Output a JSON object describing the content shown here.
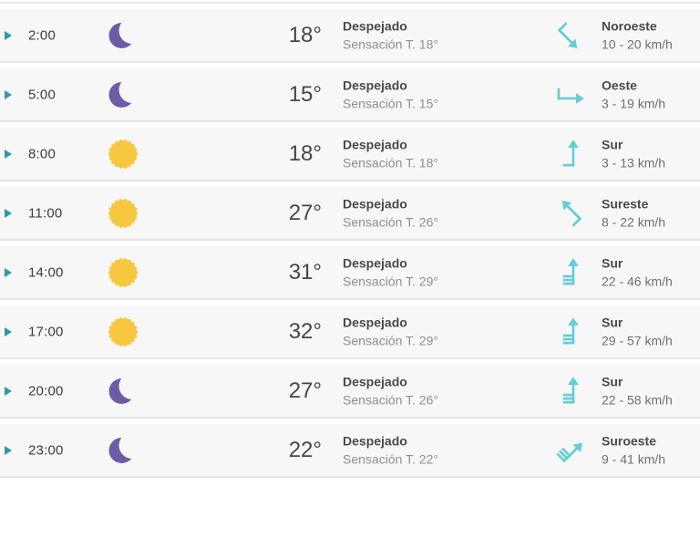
{
  "colors": {
    "row_background": "#f7f7f7",
    "separator": "#e4e4e4",
    "expander_teal": "#2f97ad",
    "wind_arrow_teal": "#67ccd6",
    "moon_purple": "#6d5ba7",
    "sun_yellow": "#f7c73f",
    "text_dark": "#4a4a4a",
    "text_muted": "#8f8f8f"
  },
  "rows": [
    {
      "time": "2:00",
      "weather_icon": "moon",
      "temperature": "18°",
      "condition": "Despejado",
      "feels_like": "Sensación T. 18°",
      "wind": {
        "direction": "Noroeste",
        "speed": "10 - 20 km/h",
        "arrow_rotation_deg": 135,
        "barb_count": 1
      }
    },
    {
      "time": "5:00",
      "weather_icon": "moon",
      "temperature": "15°",
      "condition": "Despejado",
      "feels_like": "Sensación T. 15°",
      "wind": {
        "direction": "Oeste",
        "speed": "3 - 19 km/h",
        "arrow_rotation_deg": 90,
        "barb_count": 1
      }
    },
    {
      "time": "8:00",
      "weather_icon": "sun",
      "temperature": "18°",
      "condition": "Despejado",
      "feels_like": "Sensación T. 18°",
      "wind": {
        "direction": "Sur",
        "speed": "3 - 13 km/h",
        "arrow_rotation_deg": 0,
        "barb_count": 1
      }
    },
    {
      "time": "11:00",
      "weather_icon": "sun",
      "temperature": "27°",
      "condition": "Despejado",
      "feels_like": "Sensación T. 26°",
      "wind": {
        "direction": "Sureste",
        "speed": "8 - 22 km/h",
        "arrow_rotation_deg": 315,
        "barb_count": 1
      }
    },
    {
      "time": "14:00",
      "weather_icon": "sun",
      "temperature": "31°",
      "condition": "Despejado",
      "feels_like": "Sensación T. 29°",
      "wind": {
        "direction": "Sur",
        "speed": "22 - 46 km/h",
        "arrow_rotation_deg": 0,
        "barb_count": 3
      }
    },
    {
      "time": "17:00",
      "weather_icon": "sun",
      "temperature": "32°",
      "condition": "Despejado",
      "feels_like": "Sensación T. 29°",
      "wind": {
        "direction": "Sur",
        "speed": "29 - 57 km/h",
        "arrow_rotation_deg": 0,
        "barb_count": 3
      }
    },
    {
      "time": "20:00",
      "weather_icon": "moon",
      "temperature": "27°",
      "condition": "Despejado",
      "feels_like": "Sensación T. 26°",
      "wind": {
        "direction": "Sur",
        "speed": "22 - 58 km/h",
        "arrow_rotation_deg": 0,
        "barb_count": 3
      }
    },
    {
      "time": "23:00",
      "weather_icon": "moon",
      "temperature": "22°",
      "condition": "Despejado",
      "feels_like": "Sensación T. 22°",
      "wind": {
        "direction": "Suroeste",
        "speed": "9 - 41 km/h",
        "arrow_rotation_deg": 45,
        "barb_count": 3
      }
    }
  ]
}
